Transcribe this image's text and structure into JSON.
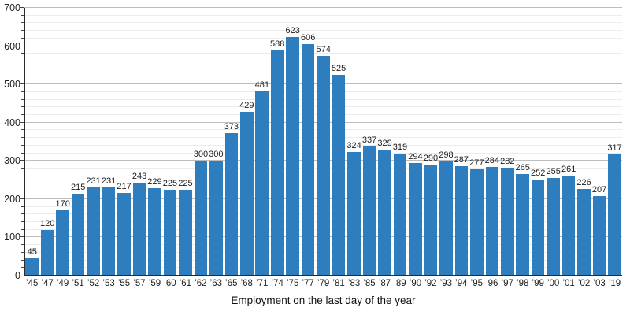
{
  "chart_data": {
    "type": "bar",
    "title": "",
    "xlabel": "Employment on the last day of the year",
    "ylabel": "",
    "categories": [
      "’45",
      "’47",
      "’49",
      "’51",
      "’52",
      "’53",
      "’55",
      "’57",
      "’59",
      "’60",
      "’61",
      "’62",
      "’63",
      "’65",
      "’68",
      "’71",
      "’74",
      "’75",
      "’77",
      "’79",
      "’81",
      "’83",
      "’85",
      "’87",
      "’89",
      "’90",
      "’92",
      "’93",
      "’94",
      "’95",
      "’96",
      "’97",
      "’98",
      "’99",
      "’00",
      "’01",
      "’02",
      "’03",
      "’19"
    ],
    "values": [
      45,
      120,
      170,
      215,
      231,
      231,
      217,
      243,
      229,
      225,
      225,
      300,
      300,
      373,
      429,
      481,
      588,
      623,
      606,
      574,
      525,
      324,
      337,
      329,
      319,
      294,
      290,
      298,
      287,
      277,
      284,
      282,
      265,
      252,
      255,
      261,
      226,
      207,
      317
    ],
    "value_labels_shown": true,
    "ylim": [
      0,
      700
    ],
    "y_major_step": 100,
    "y_minor_step": 20,
    "y_tick_labels": [
      "0",
      "100",
      "200",
      "300",
      "400",
      "500",
      "600",
      "700"
    ],
    "grid": true,
    "legend": false,
    "colors": {
      "bar": "#2e7ebf",
      "grid_major": "#bdbdbd",
      "grid_minor": "#ececec",
      "axis": "#2b2b2b",
      "label_text": "#1c1c1c"
    }
  }
}
